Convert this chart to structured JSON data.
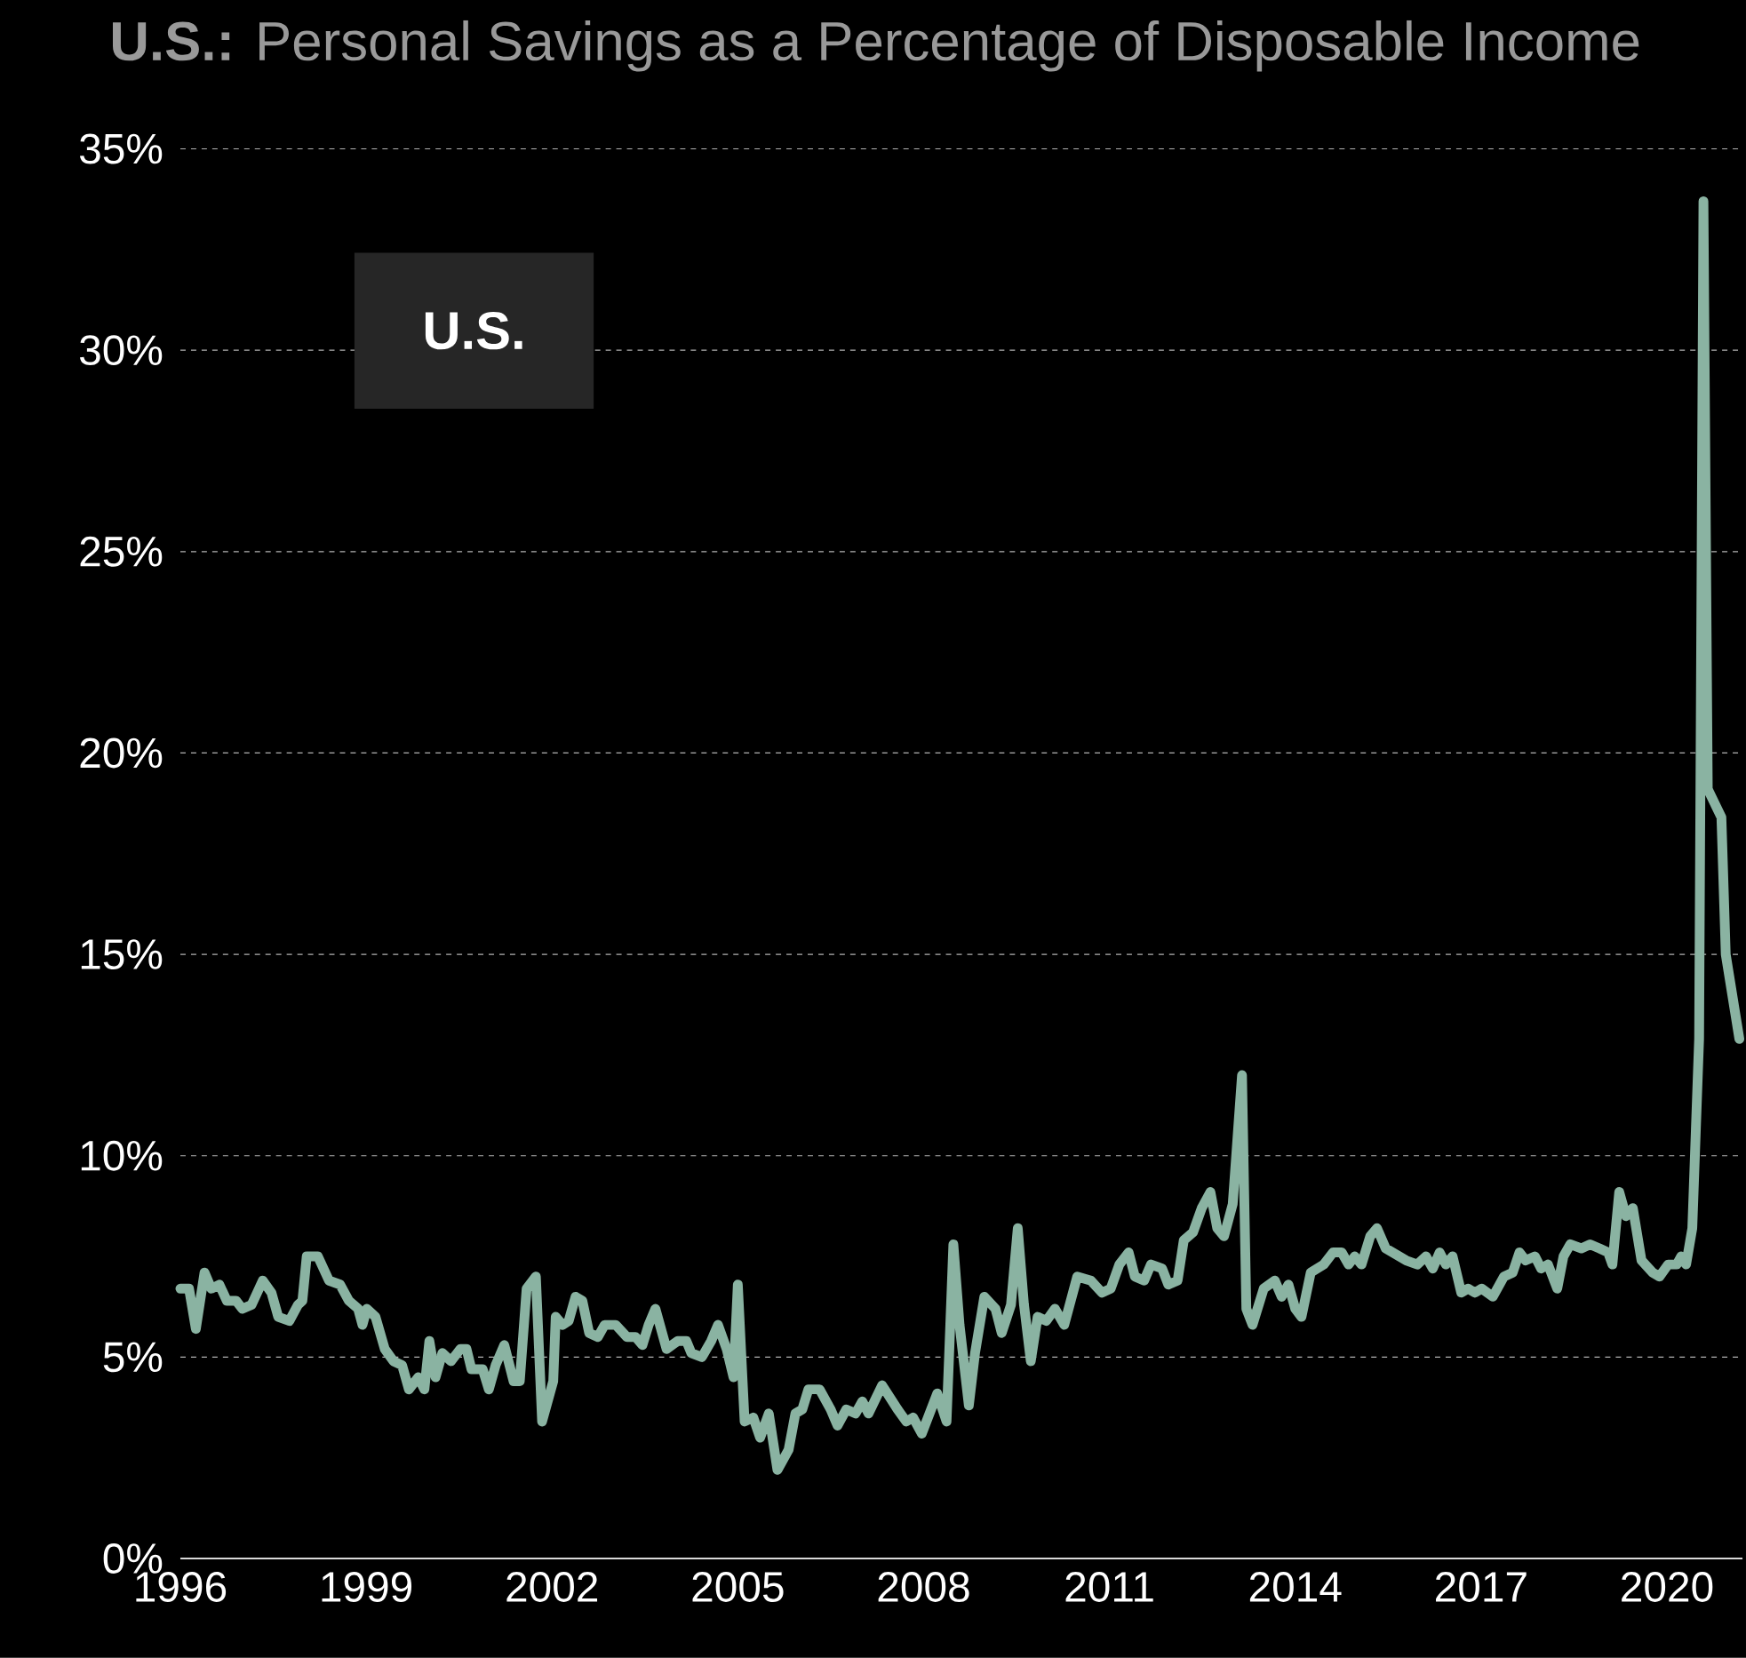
{
  "chart_data": {
    "type": "line",
    "title": "**U.S.:** Personal Savings as a Percentage of Disposable Income",
    "annotations": [
      "U.S."
    ],
    "xlim": [
      1996,
      2021.22
    ],
    "ylim": [
      0,
      35
    ],
    "xticks": [
      1996,
      1999,
      2002,
      2005,
      2008,
      2011,
      2014,
      2017,
      2020
    ],
    "yticks": [
      {
        "value": 0,
        "label": "0%"
      },
      {
        "value": 5,
        "label": "5%"
      },
      {
        "value": 10,
        "label": "10%"
      },
      {
        "value": 15,
        "label": "15%"
      },
      {
        "value": 20,
        "label": "20%"
      },
      {
        "value": 25,
        "label": "25%"
      },
      {
        "value": 30,
        "label": "30%"
      },
      {
        "value": 35,
        "label": "35%"
      }
    ],
    "grid": "y",
    "line_style": "solid",
    "series": [
      {
        "color": "#8ab3a2",
        "x": [
          1996.0,
          1996.14,
          1996.25,
          1996.39,
          1996.5,
          1996.63,
          1996.75,
          1996.9,
          1997.0,
          1997.15,
          1997.33,
          1997.47,
          1997.58,
          1997.76,
          1997.9,
          1997.97,
          1998.04,
          1998.22,
          1998.4,
          1998.58,
          1998.72,
          1998.87,
          1998.94,
          1999.01,
          1999.15,
          1999.3,
          1999.44,
          1999.58,
          1999.69,
          1999.84,
          1999.94,
          2000.02,
          2000.12,
          2000.23,
          2000.37,
          2000.52,
          2000.62,
          2000.7,
          2000.88,
          2000.98,
          2001.09,
          2001.23,
          2001.38,
          2001.48,
          2001.59,
          2001.74,
          2001.84,
          2002.02,
          2002.06,
          2002.17,
          2002.27,
          2002.38,
          2002.49,
          2002.6,
          2002.74,
          2002.85,
          2003.03,
          2003.21,
          2003.35,
          2003.46,
          2003.56,
          2003.67,
          2003.85,
          2004.03,
          2004.17,
          2004.25,
          2004.42,
          2004.57,
          2004.68,
          2004.82,
          2004.93,
          2005.0,
          2005.11,
          2005.25,
          2005.36,
          2005.5,
          2005.64,
          2005.82,
          2005.93,
          2006.04,
          2006.14,
          2006.32,
          2006.5,
          2006.61,
          2006.75,
          2006.9,
          2007.01,
          2007.11,
          2007.33,
          2007.58,
          2007.72,
          2007.83,
          2007.97,
          2008.22,
          2008.37,
          2008.48,
          2008.58,
          2008.73,
          2008.83,
          2008.98,
          2009.16,
          2009.26,
          2009.41,
          2009.52,
          2009.62,
          2009.73,
          2009.84,
          2009.98,
          2010.12,
          2010.27,
          2010.48,
          2010.7,
          2010.88,
          2011.02,
          2011.16,
          2011.31,
          2011.41,
          2011.56,
          2011.67,
          2011.85,
          2011.95,
          2012.1,
          2012.2,
          2012.35,
          2012.49,
          2012.63,
          2012.74,
          2012.85,
          2012.99,
          2013.14,
          2013.21,
          2013.31,
          2013.49,
          2013.67,
          2013.78,
          2013.89,
          2014.0,
          2014.1,
          2014.25,
          2014.46,
          2014.61,
          2014.75,
          2014.86,
          2014.96,
          2015.07,
          2015.21,
          2015.32,
          2015.46,
          2015.79,
          2015.97,
          2016.11,
          2016.22,
          2016.33,
          2016.43,
          2016.54,
          2016.68,
          2016.79,
          2016.9,
          2017.01,
          2017.19,
          2017.37,
          2017.51,
          2017.62,
          2017.72,
          2017.87,
          2017.97,
          2018.08,
          2018.23,
          2018.33,
          2018.44,
          2018.62,
          2018.76,
          2018.91,
          2019.05,
          2019.12,
          2019.23,
          2019.34,
          2019.45,
          2019.59,
          2019.77,
          2019.88,
          2020.02,
          2020.16,
          2020.23,
          2020.31,
          2020.41,
          2020.52,
          2020.59,
          2020.66,
          2020.88,
          2020.95,
          2021.17
        ],
        "values": [
          6.7,
          6.7,
          5.7,
          7.1,
          6.7,
          6.8,
          6.4,
          6.4,
          6.2,
          6.3,
          6.9,
          6.6,
          6.0,
          5.9,
          6.3,
          6.4,
          7.5,
          7.5,
          6.9,
          6.8,
          6.4,
          6.2,
          5.8,
          6.2,
          6.0,
          5.2,
          4.9,
          4.8,
          4.2,
          4.5,
          4.2,
          5.4,
          4.5,
          5.1,
          4.9,
          5.2,
          5.2,
          4.7,
          4.7,
          4.2,
          4.8,
          5.3,
          4.4,
          4.4,
          6.7,
          7.0,
          3.4,
          4.4,
          6.0,
          5.8,
          5.9,
          6.5,
          6.4,
          5.6,
          5.5,
          5.8,
          5.8,
          5.5,
          5.5,
          5.3,
          5.8,
          6.2,
          5.2,
          5.4,
          5.4,
          5.1,
          5.0,
          5.4,
          5.8,
          5.2,
          4.5,
          6.8,
          3.4,
          3.5,
          3.0,
          3.6,
          2.2,
          2.7,
          3.6,
          3.7,
          4.2,
          4.2,
          3.7,
          3.3,
          3.7,
          3.6,
          3.9,
          3.6,
          4.3,
          3.7,
          3.4,
          3.5,
          3.1,
          4.1,
          3.4,
          7.8,
          5.8,
          3.8,
          5.1,
          6.5,
          6.2,
          5.6,
          6.3,
          8.2,
          6.3,
          4.9,
          6.0,
          5.9,
          6.2,
          5.8,
          7.0,
          6.9,
          6.6,
          6.7,
          7.3,
          7.6,
          7.0,
          6.9,
          7.3,
          7.2,
          6.8,
          6.9,
          7.9,
          8.1,
          8.7,
          9.1,
          8.2,
          8.0,
          8.8,
          12.0,
          6.2,
          5.8,
          6.7,
          6.9,
          6.5,
          6.8,
          6.2,
          6.0,
          7.1,
          7.3,
          7.6,
          7.6,
          7.3,
          7.5,
          7.3,
          8.0,
          8.2,
          7.7,
          7.4,
          7.3,
          7.5,
          7.2,
          7.6,
          7.3,
          7.5,
          6.6,
          6.7,
          6.6,
          6.7,
          6.5,
          7.0,
          7.1,
          7.6,
          7.4,
          7.5,
          7.2,
          7.3,
          6.7,
          7.5,
          7.8,
          7.7,
          7.8,
          7.7,
          7.6,
          7.3,
          9.1,
          8.5,
          8.7,
          7.4,
          7.1,
          7.0,
          7.3,
          7.3,
          7.5,
          7.3,
          8.2,
          12.9,
          33.7,
          19.1,
          18.4,
          15.0,
          12.9
        ]
      }
    ]
  }
}
